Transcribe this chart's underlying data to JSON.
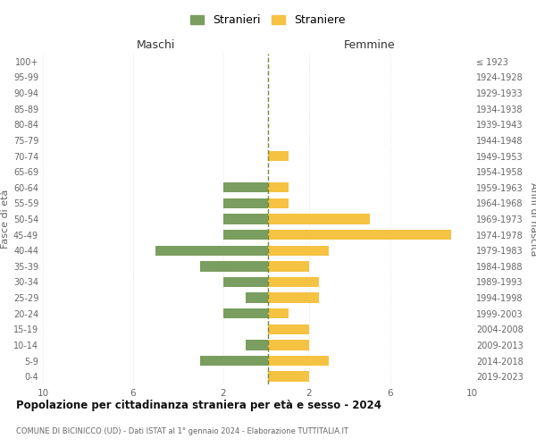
{
  "age_groups": [
    "100+",
    "95-99",
    "90-94",
    "85-89",
    "80-84",
    "75-79",
    "70-74",
    "65-69",
    "60-64",
    "55-59",
    "50-54",
    "45-49",
    "40-44",
    "35-39",
    "30-34",
    "25-29",
    "20-24",
    "15-19",
    "10-14",
    "5-9",
    "0-4"
  ],
  "birth_years": [
    "≤ 1923",
    "1924-1928",
    "1929-1933",
    "1934-1938",
    "1939-1943",
    "1944-1948",
    "1949-1953",
    "1954-1958",
    "1959-1963",
    "1964-1968",
    "1969-1973",
    "1974-1978",
    "1979-1983",
    "1984-1988",
    "1989-1993",
    "1994-1998",
    "1999-2003",
    "2004-2008",
    "2009-2013",
    "2014-2018",
    "2019-2023"
  ],
  "maschi": [
    0,
    0,
    0,
    0,
    0,
    0,
    0,
    0,
    2,
    2,
    2,
    2,
    5,
    3,
    2,
    1,
    2,
    0,
    1,
    3,
    0
  ],
  "femmine": [
    0,
    0,
    0,
    0,
    0,
    0,
    1,
    0,
    1,
    1,
    5,
    9,
    3,
    2,
    2.5,
    2.5,
    1,
    2,
    2,
    3,
    2
  ],
  "color_maschi": "#7a9e5f",
  "color_femmine": "#f5c242",
  "color_dashed": "#7a883a",
  "title": "Popolazione per cittadinanza straniera per età e sesso - 2024",
  "subtitle": "COMUNE DI BICINICCO (UD) - Dati ISTAT al 1° gennaio 2024 - Elaborazione TUTTITALIA.IT",
  "label_maschi_header": "Maschi",
  "label_femmine_header": "Femmine",
  "ylabel_left": "Fasce di età",
  "ylabel_right": "Anni di nascita",
  "legend_maschi": "Stranieri",
  "legend_femmine": "Straniere",
  "xlim": 10,
  "xtick_labels_left": [
    "10",
    "6",
    "2"
  ],
  "xtick_vals_left": [
    10,
    6,
    2
  ],
  "xtick_labels_right": [
    "2",
    "6",
    "10"
  ],
  "xtick_vals_right": [
    2,
    6,
    10
  ],
  "background_color": "#ffffff",
  "grid_color": "#dddddd",
  "text_color": "#666666",
  "title_color": "#111111"
}
